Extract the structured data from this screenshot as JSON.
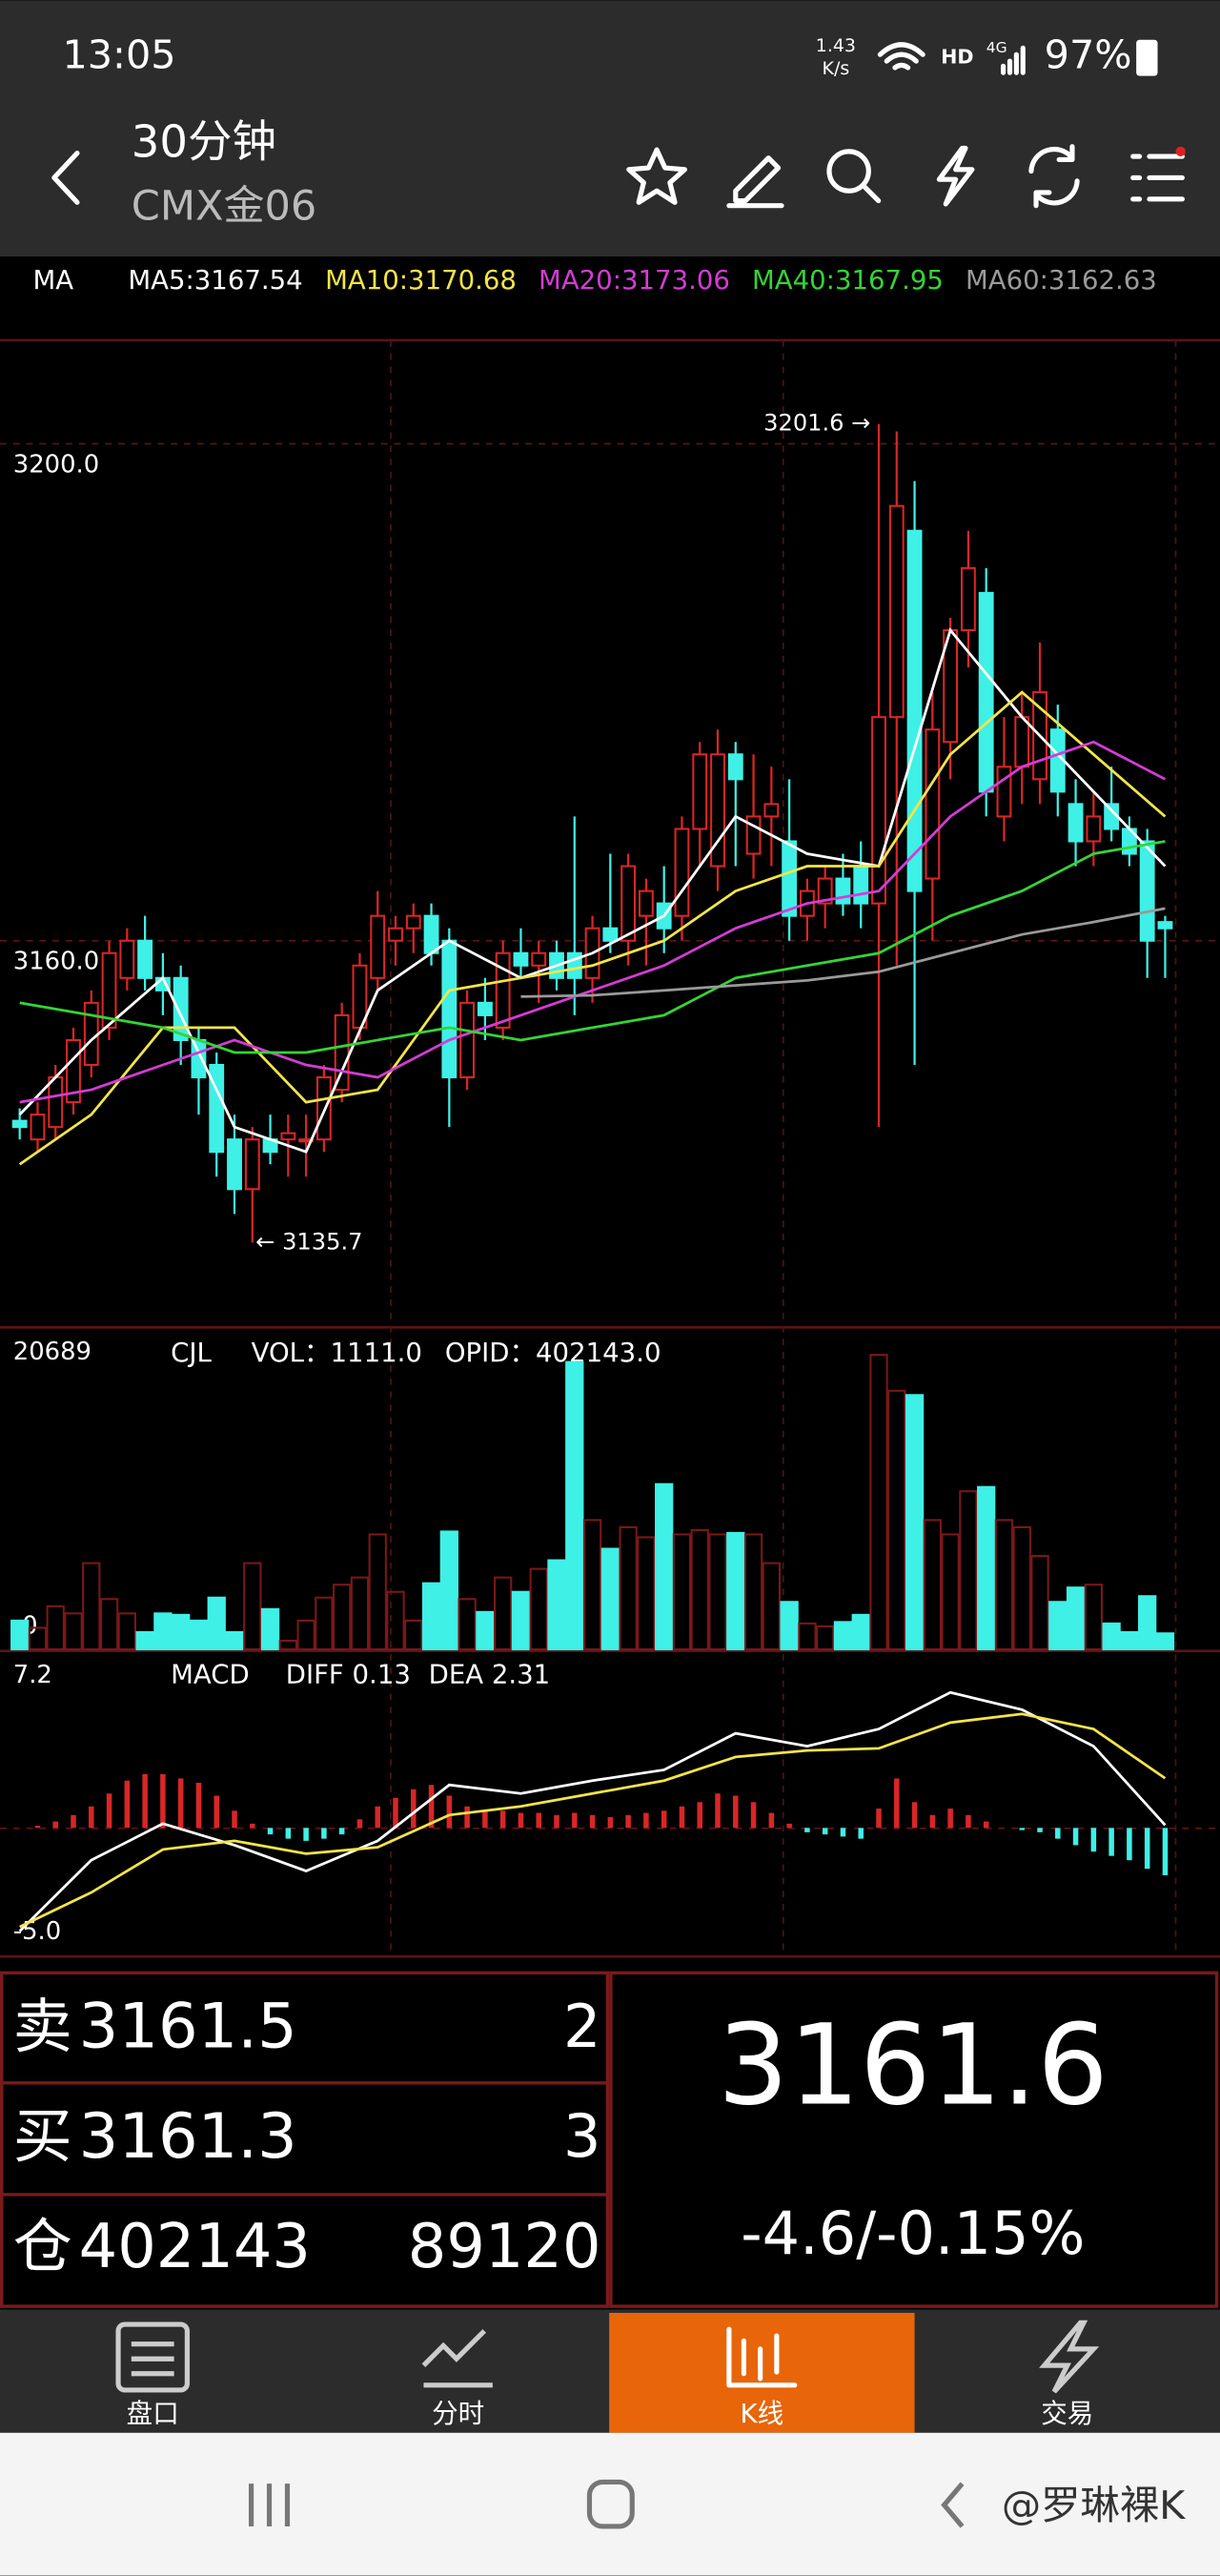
{
  "status": {
    "time": "13:05",
    "speed": "1.43",
    "speed_unit": "K/s",
    "hd": "HD",
    "network": "4G",
    "battery": "97%"
  },
  "header": {
    "period": "30分钟",
    "symbol": "CMX金06"
  },
  "chart_data": [
    {
      "type": "candlestick",
      "title": "MA",
      "up_color": "#d92626",
      "down_color": "#3ff0e6",
      "grid": true,
      "ylim": [
        3129,
        3208.2
      ],
      "yticks": [
        {
          "value": 3200,
          "label": "3200.0"
        },
        {
          "value": 3160,
          "label": "3160.0"
        }
      ],
      "annotations": [
        "3201.6 →",
        "← 3135.7"
      ],
      "open": [
        3145.5,
        3144,
        3145,
        3147,
        3150,
        3153,
        3157,
        3160,
        3157,
        3157,
        3152,
        3150,
        3144,
        3140,
        3144,
        3144,
        3144,
        3144,
        3148,
        3153,
        3157,
        3160,
        3161,
        3162,
        3160,
        3149,
        3155,
        3153,
        3159,
        3158,
        3159,
        3159,
        3157,
        3161,
        3160,
        3162,
        3163,
        3162,
        3169,
        3166,
        3175,
        3167,
        3170,
        3168,
        3162,
        3163,
        3165,
        3166,
        3163,
        3178,
        3193,
        3165,
        3176,
        3185,
        3188,
        3170,
        3174,
        3173,
        3177,
        3171,
        3168,
        3171,
        3169,
        3168,
        3161.5
      ],
      "high": [
        3146.5,
        3147,
        3150,
        3153,
        3156,
        3160,
        3161,
        3162,
        3159,
        3158,
        3153,
        3151,
        3146,
        3145,
        3146,
        3146,
        3146,
        3150,
        3155,
        3159,
        3164,
        3162,
        3163,
        3163,
        3161,
        3156,
        3157,
        3160,
        3161,
        3160,
        3160,
        3170,
        3162,
        3167,
        3167,
        3165,
        3166,
        3170,
        3176,
        3177,
        3176,
        3175,
        3174,
        3173,
        3165,
        3166,
        3167,
        3168,
        3201.6,
        3201,
        3197,
        3180,
        3186,
        3193,
        3190,
        3178,
        3180,
        3184,
        3179,
        3173,
        3172,
        3174,
        3170,
        3169,
        3162
      ],
      "low": [
        3144,
        3143,
        3144,
        3146,
        3149,
        3152,
        3156,
        3156,
        3154,
        3150,
        3146,
        3141,
        3138,
        3135.7,
        3142,
        3141,
        3141,
        3143,
        3147,
        3152,
        3156,
        3158,
        3159,
        3158,
        3145,
        3148,
        3152,
        3152,
        3157,
        3155,
        3156,
        3154,
        3155,
        3159,
        3158,
        3158,
        3159,
        3160,
        3166,
        3164,
        3166,
        3165,
        3166,
        3160,
        3160,
        3161,
        3162,
        3161,
        3145,
        3158,
        3150,
        3160,
        3173,
        3182,
        3170,
        3168,
        3171,
        3171,
        3170,
        3166,
        3166,
        3168,
        3166,
        3157,
        3157
      ],
      "close": [
        3145,
        3146,
        3149,
        3152,
        3155,
        3159,
        3160,
        3157,
        3156,
        3152,
        3149,
        3143,
        3140,
        3144,
        3143,
        3144.5,
        3144,
        3149,
        3154,
        3158,
        3162,
        3161,
        3162,
        3159,
        3149,
        3155,
        3154,
        3159,
        3158,
        3159,
        3157,
        3157,
        3161,
        3160,
        3166,
        3164,
        3161,
        3169,
        3175,
        3175,
        3173,
        3170,
        3171,
        3162,
        3164,
        3165,
        3163,
        3163,
        3178,
        3195,
        3164,
        3177,
        3185,
        3190,
        3172,
        3174,
        3178,
        3180,
        3172,
        3168,
        3170,
        3169,
        3167,
        3160,
        3161
      ],
      "series": [
        {
          "name": "MA5:3167.54",
          "color": "#ffffff",
          "x": [
            0,
            4,
            8,
            12,
            16,
            20,
            24,
            28,
            32,
            36,
            40,
            44,
            48,
            52,
            56,
            60,
            64
          ],
          "values": [
            3146,
            3152,
            3157,
            3145,
            3143,
            3156,
            3160,
            3157,
            3159,
            3162,
            3170,
            3167,
            3166,
            3185,
            3178,
            3172,
            3166
          ]
        },
        {
          "name": "MA10:3170.68",
          "color": "#f2e44a",
          "x": [
            0,
            4,
            8,
            12,
            16,
            20,
            24,
            28,
            32,
            36,
            40,
            44,
            48,
            52,
            56,
            60,
            64
          ],
          "values": [
            3142,
            3146,
            3153,
            3153,
            3147,
            3148,
            3156,
            3157,
            3158,
            3160,
            3164,
            3166,
            3166,
            3175,
            3180,
            3175,
            3170
          ]
        },
        {
          "name": "MA20:3173.06",
          "color": "#d43cd4",
          "x": [
            0,
            4,
            8,
            12,
            16,
            20,
            24,
            28,
            32,
            36,
            40,
            44,
            48,
            52,
            56,
            60,
            64
          ],
          "values": [
            3147,
            3148,
            3150,
            3152,
            3150,
            3149,
            3152,
            3154,
            3156,
            3158,
            3161,
            3163,
            3164,
            3170,
            3174,
            3176,
            3173
          ]
        },
        {
          "name": "MA40:3167.95",
          "color": "#35d435",
          "x": [
            0,
            4,
            8,
            12,
            16,
            20,
            24,
            28,
            32,
            36,
            40,
            44,
            48,
            52,
            56,
            60,
            64
          ],
          "values": [
            3155,
            3154,
            3153,
            3151,
            3151,
            3152,
            3153,
            3152,
            3153,
            3154,
            3157,
            3158,
            3159,
            3162,
            3164,
            3167,
            3168
          ]
        },
        {
          "name": "MA60:3162.63",
          "color": "#9a9a9a",
          "x": [
            28,
            32,
            36,
            40,
            44,
            48,
            52,
            56,
            60,
            64
          ],
          "values": [
            3155.5,
            3155.6,
            3156,
            3156.4,
            3156.8,
            3157.5,
            3159,
            3160.5,
            3161.5,
            3162.6
          ]
        }
      ]
    },
    {
      "type": "bar",
      "title": "CJL",
      "annotations": [
        "VOL：1111.0",
        "OPID：402143.0"
      ],
      "ylim": [
        0,
        22180
      ],
      "yticks": [
        20689,
        {
          "value": 0,
          "label": "-0"
        }
      ],
      "values": [
        2000,
        1500,
        3000,
        2500,
        6000,
        3500,
        2500,
        1200,
        2500,
        2400,
        2000,
        3600,
        1200,
        6000,
        2800,
        600,
        2000,
        3600,
        4500,
        5000,
        8000,
        4000,
        2000,
        4600,
        8200,
        3500,
        2600,
        5000,
        4000,
        5600,
        6200,
        20000,
        9000,
        7000,
        8500,
        7800,
        11500,
        8000,
        8300,
        8000,
        8100,
        8000,
        6000,
        3300,
        1800,
        1600,
        1900,
        2400,
        20500,
        18000,
        17700,
        9000,
        8000,
        11000,
        11300,
        9000,
        8500,
        6500,
        3300,
        4300,
        4500,
        1800,
        1200,
        3700,
        1111
      ]
    },
    {
      "type": "macd",
      "title": "MACD",
      "up_color": "#d92626",
      "down_color": "#3ff0e6",
      "ylim": [
        -5.9,
        8.0
      ],
      "yticks": [
        7.2,
        {
          "value": -5,
          "label": "-5.0"
        }
      ],
      "values": [
        0,
        0.1,
        0.3,
        0.6,
        1.0,
        1.6,
        2.2,
        2.5,
        2.5,
        2.3,
        2.1,
        1.5,
        0.8,
        0.2,
        -0.3,
        -0.5,
        -0.6,
        -0.5,
        -0.3,
        0.4,
        1.0,
        1.4,
        1.8,
        2.0,
        1.5,
        1.0,
        0.8,
        0.8,
        0.7,
        0.7,
        0.6,
        0.7,
        0.6,
        0.5,
        0.6,
        0.7,
        0.8,
        1.0,
        1.2,
        1.6,
        1.5,
        1.2,
        0.7,
        0.2,
        -0.2,
        -0.3,
        -0.4,
        -0.5,
        0.9,
        2.3,
        1.2,
        0.6,
        0.9,
        0.6,
        0.3,
        0,
        -0.1,
        -0.2,
        -0.5,
        -0.8,
        -1.1,
        -1.3,
        -1.5,
        -1.9,
        -2.2
      ],
      "series": [
        {
          "name": "DIFF 0.13",
          "color": "#ffffff",
          "x": [
            0,
            4,
            8,
            12,
            16,
            20,
            24,
            28,
            32,
            36,
            40,
            44,
            48,
            52,
            56,
            60,
            64
          ],
          "values": [
            -4.8,
            -1.5,
            0.2,
            -0.8,
            -2.0,
            -0.6,
            2.0,
            1.6,
            2.2,
            2.7,
            4.4,
            3.8,
            4.6,
            6.3,
            5.5,
            3.8,
            0.13
          ]
        },
        {
          "name": "DEA 2.31",
          "color": "#f2e44a",
          "x": [
            0,
            4,
            8,
            12,
            16,
            20,
            24,
            28,
            32,
            36,
            40,
            44,
            48,
            52,
            56,
            60,
            64
          ],
          "values": [
            -4.6,
            -3.0,
            -1.0,
            -0.6,
            -1.2,
            -0.9,
            0.6,
            1.0,
            1.6,
            2.2,
            3.3,
            3.6,
            3.7,
            4.9,
            5.3,
            4.6,
            2.31
          ]
        }
      ]
    }
  ],
  "quote": {
    "sell_label": "卖",
    "sell_price": "3161.5",
    "sell_qty": "2",
    "buy_label": "买",
    "buy_price": "3161.3",
    "buy_qty": "3",
    "oi_label": "仓",
    "oi": "402143",
    "volume": "89120",
    "last": "3161.6",
    "change": "-4.6/-0.15%"
  },
  "tabs": [
    "盘口",
    "分时",
    "K线",
    "交易"
  ],
  "watermark": "@罗琳裸K"
}
